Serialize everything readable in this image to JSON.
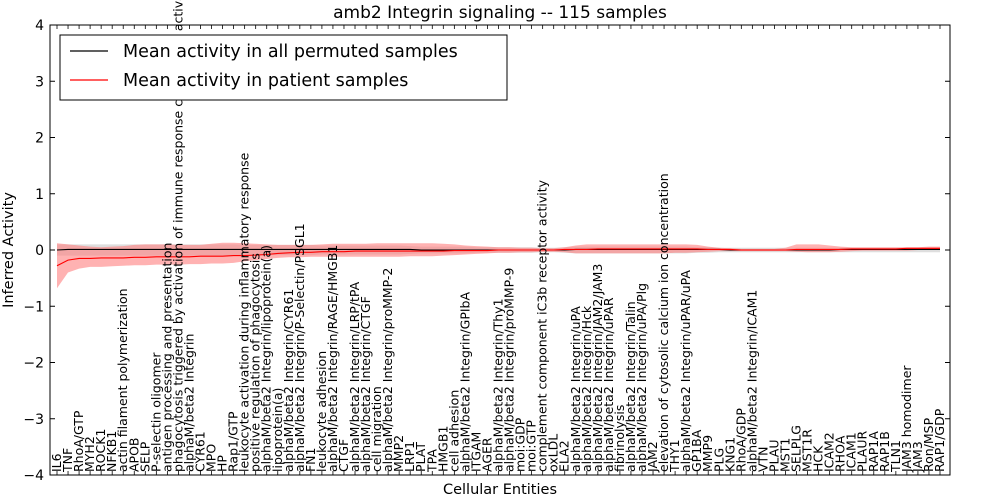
{
  "chart_data": {
    "type": "line",
    "title": "amb2 Integrin signaling -- 115 samples",
    "xlabel": "Cellular Entities",
    "ylabel": "Inferred Activity",
    "ylim": [
      -4,
      4
    ],
    "yticks": [
      "4",
      "3",
      "2",
      "1",
      "0",
      "−1",
      "−2",
      "−3",
      "−4"
    ],
    "grid": false,
    "legend": {
      "location": "top-left",
      "entries": [
        {
          "label": "Mean activity in all permuted samples",
          "color": "#000000"
        },
        {
          "label": "Mean activity in patient samples",
          "color": "#ff0000"
        }
      ]
    },
    "band_colors": {
      "permuted": "#c8c8c8",
      "patient": "#ff7f7f"
    },
    "categories": [
      "IL6",
      "TNF",
      "RhoA/GTP",
      "MYH2",
      "ROCK1",
      "NFKB1",
      "actin filament polymerization",
      "APOB",
      "SELP",
      "P-selectin oligomer",
      "antigen processing and presentation",
      "phagocytosis triggered by activation of immune response cell surface activating receptor",
      "alphaM/beta2 Integrin",
      "CYR61",
      "MPO",
      "HP",
      "Rap1/GTP",
      "leukocyte activation during inflammatory response",
      "positive regulation of phagocytosis",
      "alphaM/beta2 Integrin/lipoprotein(a)",
      "lipoprotein(a)",
      "alphaM/beta2 Integrin/CYR61",
      "alphaM/beta2 Integrin/P-Selectin/PSGL1",
      "FN1",
      "leukocyte adhesion",
      "alphaM/beta2 Integrin/RAGE/HMGB1",
      "CTGF",
      "alphaM/beta2 Integrin/LRP/tPA",
      "alphaM/beta2 Integrin/CTGF",
      "cell migration",
      "alphaM/beta2 Integrin/proMMP-2",
      "MMP2",
      "LRP1",
      "PLAT",
      "TPA",
      "HMGB1",
      "cell adhesion",
      "alphaM/beta2 Integrin/GPIbA",
      "ITGAM",
      "AGER",
      "alphaM/beta2 Integrin/Thy1",
      "alphaM/beta2 Integrin/proMMP-9",
      "moi:GDP",
      "moi:GTP",
      "complement component iC3b receptor activity",
      "oxLDL",
      "ELA2",
      "alphaM/beta2 Integrin/uPA",
      "alphaM/beta2 Integrin/Hck",
      "alphaM/beta2 Integrin/JAM2/JAM3",
      "alphaM/beta2 Integrin/uPAR",
      "fibrinolysis",
      "alphaM/beta2 Integrin/Talin",
      "alphaM/beta2 Integrin/uPA/Plg",
      "JAM2",
      "elevation of cytosolic calcium ion concentration",
      "THY1",
      "alphaM/beta2 Integrin/uPAR/uPA",
      "GP1BA",
      "MMP9",
      "PLG",
      "KNG1",
      "RhoA/GDP",
      "alphaM/beta2 Integrin/ICAM1",
      "VTN",
      "PLAU",
      "MST1",
      "SELPLG",
      "MST1R",
      "HCK",
      "ICAM2",
      "RHOA",
      "ICAM1",
      "PLAUR",
      "RAP1A",
      "RAP1B",
      "TLN1",
      "JAM3 homodimer",
      "JAM3",
      "Ron/MSP",
      "RAP1/GDP"
    ],
    "series": [
      {
        "name": "Mean activity in all permuted samples",
        "values": [
          0.0,
          0.01,
          0.01,
          0.01,
          0.01,
          0.01,
          0.01,
          0.01,
          0.01,
          0.01,
          0.01,
          0.01,
          0.01,
          0.01,
          0.01,
          0.01,
          0.01,
          0.01,
          0.01,
          0.01,
          0.01,
          0.01,
          0.01,
          0.01,
          0.01,
          0.01,
          0.01,
          0.01,
          0.01,
          0.01,
          0.01,
          0.01,
          0.01,
          0.0,
          0.0,
          0.0,
          0.0,
          0.0,
          0.0,
          0.0,
          0.0,
          0.0,
          0.0,
          0.0,
          0.0,
          0.0,
          0.0,
          0.01,
          0.01,
          0.01,
          0.01,
          0.01,
          0.01,
          0.01,
          0.01,
          0.01,
          0.01,
          0.01,
          0.01,
          0.01,
          0.01,
          0.0,
          0.0,
          0.0,
          0.0,
          0.0,
          0.0,
          0.0,
          0.0,
          0.0,
          0.0,
          0.01,
          0.01,
          0.01,
          0.01,
          0.01,
          0.01,
          0.01,
          0.01,
          0.01,
          0.01
        ],
        "lower": [
          -0.1,
          -0.1,
          -0.1,
          -0.1,
          -0.1,
          -0.1,
          -0.1,
          -0.1,
          -0.1,
          -0.1,
          -0.1,
          -0.1,
          -0.1,
          -0.1,
          -0.1,
          -0.1,
          -0.1,
          -0.09,
          -0.09,
          -0.09,
          -0.09,
          -0.09,
          -0.09,
          -0.09,
          -0.08,
          -0.08,
          -0.08,
          -0.08,
          -0.08,
          -0.08,
          -0.08,
          -0.08,
          -0.07,
          -0.06,
          -0.06,
          -0.06,
          -0.06,
          -0.06,
          -0.05,
          -0.05,
          -0.05,
          -0.05,
          -0.05,
          -0.05,
          -0.04,
          -0.04,
          -0.05,
          -0.06,
          -0.06,
          -0.06,
          -0.06,
          -0.06,
          -0.06,
          -0.06,
          -0.06,
          -0.06,
          -0.06,
          -0.06,
          -0.05,
          -0.05,
          -0.04,
          -0.04,
          -0.04,
          -0.04,
          -0.04,
          -0.04,
          -0.04,
          -0.04,
          -0.04,
          -0.04,
          -0.04,
          -0.04,
          -0.04,
          -0.04,
          -0.04,
          -0.04,
          -0.04,
          -0.04,
          -0.04,
          -0.04,
          -0.04
        ],
        "upper": [
          0.1,
          0.1,
          0.1,
          0.1,
          0.1,
          0.1,
          0.1,
          0.1,
          0.1,
          0.1,
          0.1,
          0.1,
          0.1,
          0.1,
          0.1,
          0.1,
          0.1,
          0.09,
          0.09,
          0.09,
          0.09,
          0.09,
          0.09,
          0.09,
          0.08,
          0.08,
          0.08,
          0.08,
          0.08,
          0.08,
          0.08,
          0.08,
          0.07,
          0.06,
          0.06,
          0.06,
          0.06,
          0.06,
          0.05,
          0.05,
          0.05,
          0.05,
          0.05,
          0.05,
          0.04,
          0.04,
          0.05,
          0.06,
          0.06,
          0.06,
          0.06,
          0.06,
          0.06,
          0.06,
          0.06,
          0.06,
          0.06,
          0.06,
          0.05,
          0.05,
          0.04,
          0.04,
          0.04,
          0.04,
          0.04,
          0.04,
          0.04,
          0.04,
          0.04,
          0.04,
          0.04,
          0.04,
          0.04,
          0.04,
          0.04,
          0.04,
          0.04,
          0.04,
          0.04,
          0.04,
          0.04
        ]
      },
      {
        "name": "Mean activity in patient samples",
        "values": [
          -0.28,
          -0.18,
          -0.15,
          -0.15,
          -0.14,
          -0.14,
          -0.14,
          -0.13,
          -0.13,
          -0.12,
          -0.12,
          -0.12,
          -0.12,
          -0.11,
          -0.11,
          -0.11,
          -0.1,
          -0.1,
          -0.09,
          -0.08,
          -0.06,
          -0.05,
          -0.04,
          -0.04,
          -0.03,
          -0.03,
          -0.03,
          -0.02,
          -0.02,
          -0.02,
          -0.02,
          -0.02,
          -0.02,
          -0.02,
          -0.02,
          -0.02,
          -0.01,
          -0.01,
          -0.01,
          -0.01,
          0.0,
          0.0,
          0.0,
          0.0,
          0.0,
          0.0,
          0.01,
          0.01,
          0.01,
          0.02,
          0.02,
          0.02,
          0.02,
          0.02,
          0.02,
          0.02,
          0.02,
          0.02,
          0.02,
          0.01,
          0.01,
          0.01,
          0.0,
          0.0,
          0.0,
          0.0,
          0.0,
          0.01,
          0.01,
          0.01,
          0.01,
          0.01,
          0.02,
          0.02,
          0.02,
          0.02,
          0.02,
          0.03,
          0.03,
          0.03,
          0.03
        ],
        "lower": [
          -0.68,
          -0.4,
          -0.33,
          -0.3,
          -0.3,
          -0.29,
          -0.28,
          -0.27,
          -0.27,
          -0.26,
          -0.26,
          -0.26,
          -0.25,
          -0.25,
          -0.24,
          -0.24,
          -0.23,
          -0.2,
          -0.18,
          -0.16,
          -0.14,
          -0.13,
          -0.13,
          -0.12,
          -0.12,
          -0.12,
          -0.12,
          -0.12,
          -0.12,
          -0.12,
          -0.12,
          -0.12,
          -0.11,
          -0.11,
          -0.11,
          -0.1,
          -0.09,
          -0.08,
          -0.07,
          -0.06,
          -0.05,
          -0.05,
          -0.04,
          -0.04,
          -0.03,
          -0.03,
          -0.04,
          -0.06,
          -0.06,
          -0.06,
          -0.06,
          -0.06,
          -0.06,
          -0.06,
          -0.06,
          -0.06,
          -0.05,
          -0.05,
          -0.04,
          -0.03,
          -0.02,
          -0.02,
          -0.02,
          -0.02,
          -0.02,
          -0.02,
          -0.02,
          -0.03,
          -0.04,
          -0.04,
          -0.04,
          -0.03,
          -0.02,
          -0.01,
          -0.01,
          -0.01,
          -0.01,
          -0.01,
          0.0,
          0.0,
          0.0
        ],
        "upper": [
          0.12,
          0.1,
          0.08,
          0.06,
          0.05,
          0.06,
          0.07,
          0.09,
          0.1,
          0.1,
          0.1,
          0.09,
          0.09,
          0.09,
          0.11,
          0.13,
          0.13,
          0.12,
          0.11,
          0.1,
          0.09,
          0.09,
          0.09,
          0.09,
          0.1,
          0.11,
          0.11,
          0.11,
          0.11,
          0.12,
          0.12,
          0.12,
          0.12,
          0.12,
          0.12,
          0.11,
          0.1,
          0.08,
          0.07,
          0.06,
          0.05,
          0.05,
          0.04,
          0.04,
          0.03,
          0.03,
          0.05,
          0.08,
          0.1,
          0.1,
          0.1,
          0.1,
          0.1,
          0.1,
          0.1,
          0.1,
          0.1,
          0.1,
          0.09,
          0.06,
          0.04,
          0.03,
          0.02,
          0.02,
          0.02,
          0.02,
          0.04,
          0.1,
          0.1,
          0.1,
          0.08,
          0.06,
          0.05,
          0.05,
          0.05,
          0.05,
          0.05,
          0.05,
          0.05,
          0.06,
          0.06
        ]
      }
    ]
  }
}
